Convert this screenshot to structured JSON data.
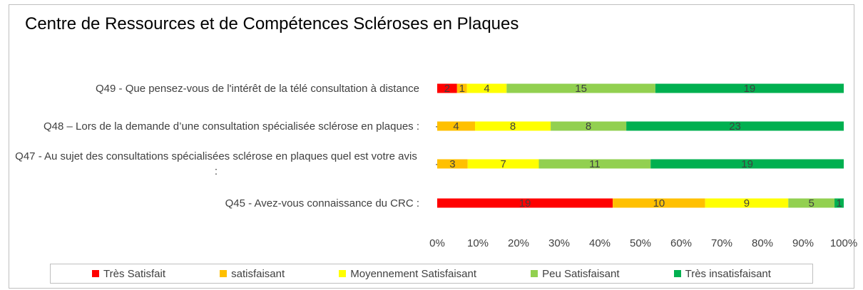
{
  "chart_data": {
    "type": "bar",
    "orientation": "horizontal",
    "stacked": "percent",
    "title": "Centre de Ressources et de Compétences Scléroses en Plaques",
    "categories": [
      "Q49 - Que pensez-vous de l'intérêt de la télé consultation à distance",
      "Q48 – Lors de la demande d’une consultation spécialisée sclérose en plaques :",
      "Q47 - Au sujet des consultations spécialisées sclérose en plaques quel est votre avis :",
      "Q45 - Avez-vous connaissance du CRC :"
    ],
    "series": [
      {
        "name": "Très Satisfait",
        "color": "#ff0000",
        "values": [
          2,
          0,
          0,
          19
        ],
        "value_labels": [
          "2",
          "-",
          "-",
          "19"
        ]
      },
      {
        "name": "satisfaisant",
        "color": "#ffc000",
        "values": [
          1,
          4,
          3,
          10
        ]
      },
      {
        "name": "Moyennement Satisfaisant",
        "color": "#ffff00",
        "values": [
          4,
          8,
          7,
          9
        ]
      },
      {
        "name": "Peu Satisfaisant",
        "color": "#92d050",
        "values": [
          15,
          8,
          11,
          5
        ]
      },
      {
        "name": "Très insatisfaisant",
        "color": "#00b050",
        "values": [
          19,
          23,
          19,
          1
        ]
      }
    ],
    "xlim": [
      0,
      100
    ],
    "xticks": [
      {
        "value": 0,
        "label": "0%"
      },
      {
        "value": 10,
        "label": "10%"
      },
      {
        "value": 20,
        "label": "20%"
      },
      {
        "value": 30,
        "label": "30%"
      },
      {
        "value": 40,
        "label": "40%"
      },
      {
        "value": 50,
        "label": "50%"
      },
      {
        "value": 60,
        "label": "60%"
      },
      {
        "value": 70,
        "label": "70%"
      },
      {
        "value": 80,
        "label": "80%"
      },
      {
        "value": 90,
        "label": "90%"
      },
      {
        "value": 100,
        "label": "100%"
      }
    ],
    "grid": false,
    "legend": "bottom"
  }
}
